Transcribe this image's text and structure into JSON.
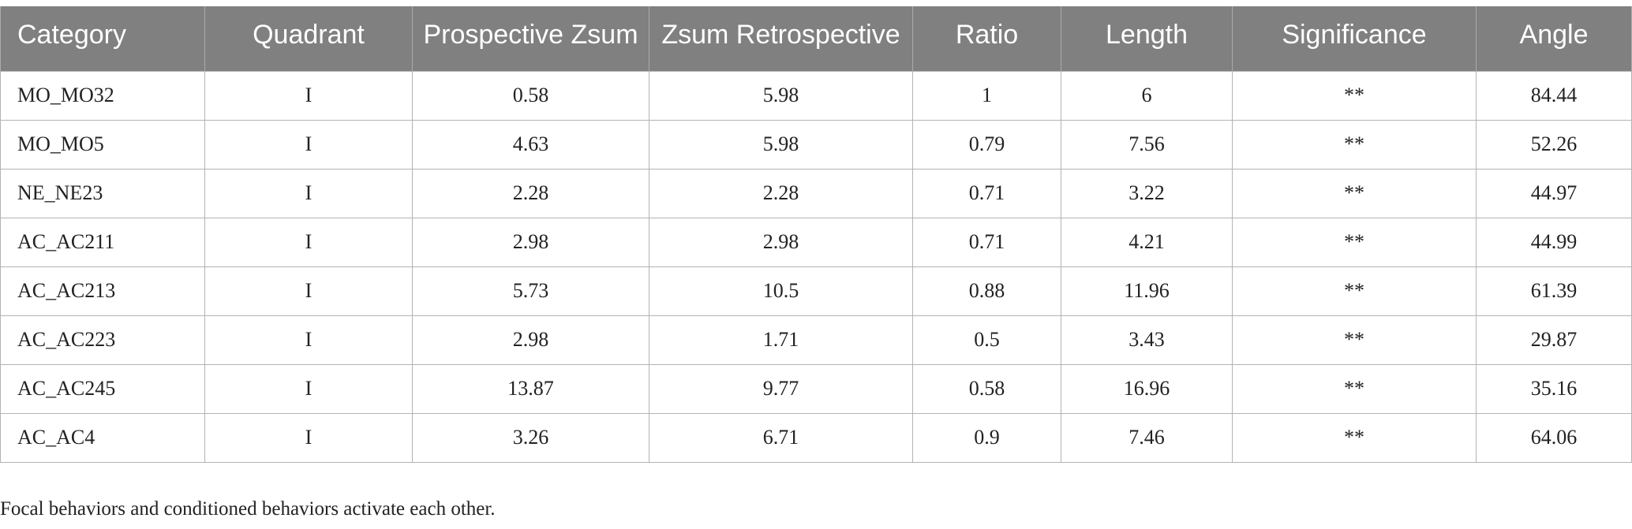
{
  "table": {
    "columns": [
      "Category",
      "Quadrant",
      "Prospective Zsum",
      "Zsum Retrospective",
      "Ratio",
      "Length",
      "Significance",
      "Angle"
    ],
    "rows": [
      [
        "MO_MO32",
        "I",
        "0.58",
        "5.98",
        "1",
        "6",
        "**",
        "84.44"
      ],
      [
        "MO_MO5",
        "I",
        "4.63",
        "5.98",
        "0.79",
        "7.56",
        "**",
        "52.26"
      ],
      [
        "NE_NE23",
        "I",
        "2.28",
        "2.28",
        "0.71",
        "3.22",
        "**",
        "44.97"
      ],
      [
        "AC_AC211",
        "I",
        "2.98",
        "2.98",
        "0.71",
        "4.21",
        "**",
        "44.99"
      ],
      [
        "AC_AC213",
        "I",
        "5.73",
        "10.5",
        "0.88",
        "11.96",
        "**",
        "61.39"
      ],
      [
        "AC_AC223",
        "I",
        "2.98",
        "1.71",
        "0.5",
        "3.43",
        "**",
        "29.87"
      ],
      [
        "AC_AC245",
        "I",
        "13.87",
        "9.77",
        "0.58",
        "16.96",
        "**",
        "35.16"
      ],
      [
        "AC_AC4",
        "I",
        "3.26",
        "6.71",
        "0.9",
        "7.46",
        "**",
        "64.06"
      ]
    ]
  },
  "footnote": "Focal behaviors and conditioned behaviors activate each other.",
  "colors": {
    "header_bg": "#7f807f",
    "header_text": "#ffffff",
    "border": "#b3b3b3"
  }
}
